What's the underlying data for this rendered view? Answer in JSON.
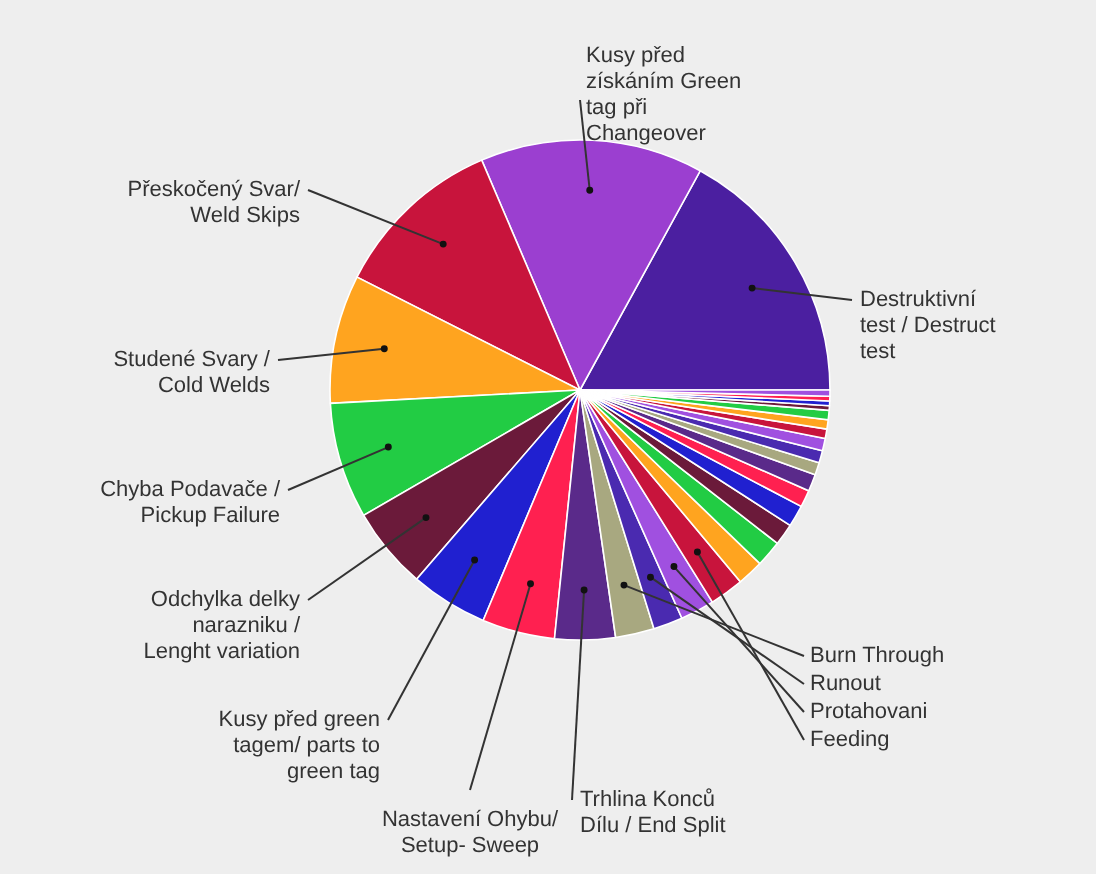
{
  "chart_data": {
    "type": "pie",
    "categories": [
      "Destruktivní test / Destruct test",
      "Kusy před získáním Green tag při Changeover",
      "Přeskočený Svar/ Weld Skips",
      "Studené Svary / Cold Welds",
      "Chyba Podavače / Pickup Failure",
      "Odchylka delky narazniku / Lenght variation",
      "Kusy před green tagem/ parts to green tag",
      "Nastavení Ohybu/ Setup- Sweep",
      "Trhlina Konců Dílu / End Split",
      "Burn Through",
      "Runout",
      "Protahovani",
      "Feeding",
      null,
      null,
      null,
      null,
      null,
      null,
      null,
      null,
      null,
      null,
      null,
      null,
      null,
      null,
      null,
      null
    ],
    "values": [
      17,
      14.4,
      11.1,
      8.3,
      7.5,
      5.3,
      5,
      4.7,
      3.9,
      2.5,
      1.9,
      2.2,
      2.2,
      1.7,
      1.7,
      1.4,
      1.4,
      1.1,
      1.1,
      0.8,
      0.8,
      0.8,
      0.6,
      0.6,
      0.6,
      0.3,
      0.3,
      0.3,
      0.4
    ],
    "colors": [
      "#4b1fa0",
      "#9b3fd0",
      "#c8143c",
      "#ffa41f",
      "#22cc44",
      "#6b1a3a",
      "#2020d0",
      "#ff2050",
      "#5a2a8a",
      "#a8a880",
      "#4a2ab0",
      "#a050e0",
      "#c8143c",
      "#ffa41f",
      "#22cc44",
      "#6b1a3a",
      "#2020d0",
      "#ff2050",
      "#5a2a8a",
      "#a8a880",
      "#4a2ab0",
      "#a050e0",
      "#c8143c",
      "#ffa41f",
      "#22cc44",
      "#6b1a3a",
      "#2020d0",
      "#ff2050",
      "#a050e0"
    ]
  }
}
